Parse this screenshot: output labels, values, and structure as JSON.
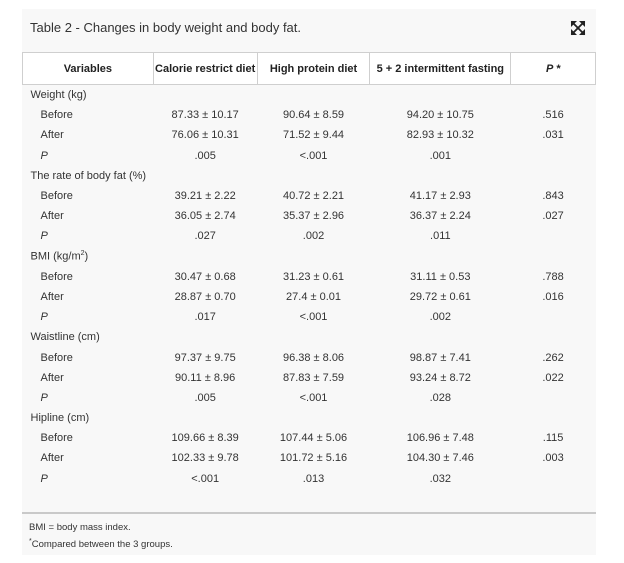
{
  "title": "Table 2 - Changes in body weight and body fat.",
  "icons": {
    "expand": "expand-arrows-icon"
  },
  "columns": [
    "Variables",
    "Calorie restrict diet",
    "High protein diet",
    "5 + 2 intermittent fasting",
    "P *"
  ],
  "groups": [
    {
      "label": "Weight (kg)",
      "rows": [
        {
          "label": "Before",
          "values": [
            "87.33 ± 10.17",
            "90.64 ± 8.59",
            "94.20 ± 10.75",
            ".516"
          ]
        },
        {
          "label": "After",
          "values": [
            "76.06 ± 10.31",
            "71.52 ± 9.44",
            "82.93 ± 10.32",
            ".031"
          ]
        },
        {
          "label": "P",
          "values": [
            ".005",
            "<.001",
            ".001",
            ""
          ]
        }
      ]
    },
    {
      "label": "The rate of body fat (%)",
      "rows": [
        {
          "label": "Before",
          "values": [
            "39.21 ± 2.22",
            "40.72 ± 2.21",
            "41.17 ± 2.93",
            ".843"
          ]
        },
        {
          "label": "After",
          "values": [
            "36.05 ± 2.74",
            "35.37 ± 2.96",
            "36.37 ± 2.24",
            ".027"
          ]
        },
        {
          "label": "P",
          "values": [
            ".027",
            ".002",
            ".011",
            ""
          ]
        }
      ]
    },
    {
      "label": "BMI (kg/m",
      "label_sup": "2",
      "label_tail": ")",
      "rows": [
        {
          "label": "Before",
          "values": [
            "30.47 ± 0.68",
            "31.23 ± 0.61",
            "31.11 ± 0.53",
            ".788"
          ]
        },
        {
          "label": "After",
          "values": [
            "28.87 ± 0.70",
            "27.4 ± 0.01",
            "29.72 ± 0.61",
            ".016"
          ]
        },
        {
          "label": "P",
          "values": [
            ".017",
            "<.001",
            ".002",
            ""
          ]
        }
      ]
    },
    {
      "label": "Waistline (cm)",
      "rows": [
        {
          "label": "Before",
          "values": [
            "97.37 ± 9.75",
            "96.38 ± 8.06",
            "98.87 ± 7.41",
            ".262"
          ]
        },
        {
          "label": "After",
          "values": [
            "90.11 ± 8.96",
            "87.83 ± 7.59",
            "93.24 ± 8.72",
            ".022"
          ]
        },
        {
          "label": "P",
          "values": [
            ".005",
            "<.001",
            ".028",
            ""
          ]
        }
      ]
    },
    {
      "label": "Hipline (cm)",
      "rows": [
        {
          "label": "Before",
          "values": [
            "109.66 ± 8.39",
            "107.44 ± 5.06",
            "106.96 ± 7.48",
            ".115"
          ]
        },
        {
          "label": "After",
          "values": [
            "102.33 ± 9.78",
            "101.72 ± 5.16",
            "104.30 ± 7.46",
            ".003"
          ]
        },
        {
          "label": "P",
          "values": [
            "<.001",
            ".013",
            ".032",
            ""
          ]
        }
      ]
    }
  ],
  "footnotes": {
    "abbrev": "BMI = body mass index.",
    "star_mark": "*",
    "star_text": "Compared between the 3 groups."
  }
}
